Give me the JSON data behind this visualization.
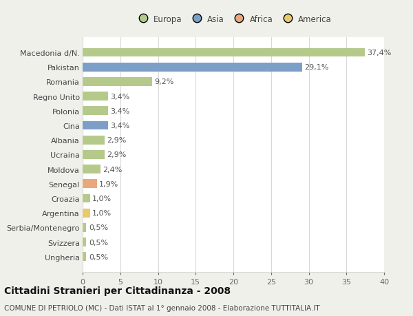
{
  "categories": [
    "Macedonia d/N.",
    "Pakistan",
    "Romania",
    "Regno Unito",
    "Polonia",
    "Cina",
    "Albania",
    "Ucraina",
    "Moldova",
    "Senegal",
    "Croazia",
    "Argentina",
    "Serbia/Montenegro",
    "Svizzera",
    "Ungheria"
  ],
  "values": [
    37.4,
    29.1,
    9.2,
    3.4,
    3.4,
    3.4,
    2.9,
    2.9,
    2.4,
    1.9,
    1.0,
    1.0,
    0.5,
    0.5,
    0.5
  ],
  "labels": [
    "37,4%",
    "29,1%",
    "9,2%",
    "3,4%",
    "3,4%",
    "3,4%",
    "2,9%",
    "2,9%",
    "2,4%",
    "1,9%",
    "1,0%",
    "1,0%",
    "0,5%",
    "0,5%",
    "0,5%"
  ],
  "continents": [
    "Europa",
    "Asia",
    "Europa",
    "Europa",
    "Europa",
    "Asia",
    "Europa",
    "Europa",
    "Europa",
    "Africa",
    "Europa",
    "America",
    "Europa",
    "Europa",
    "Europa"
  ],
  "colors": {
    "Europa": "#b5c98a",
    "Asia": "#7b9fc7",
    "Africa": "#e8a87c",
    "America": "#e8c96e"
  },
  "xlim": [
    0,
    40
  ],
  "xticks": [
    0,
    5,
    10,
    15,
    20,
    25,
    30,
    35,
    40
  ],
  "title": "Cittadini Stranieri per Cittadinanza - 2008",
  "subtitle": "COMUNE DI PETRIOLO (MC) - Dati ISTAT al 1° gennaio 2008 - Elaborazione TUTTITALIA.IT",
  "bg_color": "#f0f0eb",
  "plot_bg_color": "#ffffff",
  "grid_color": "#d8d8d8",
  "bar_height": 0.6,
  "label_fontsize": 8,
  "tick_fontsize": 8,
  "title_fontsize": 10,
  "subtitle_fontsize": 7.5,
  "legend_entries": [
    "Europa",
    "Asia",
    "Africa",
    "America"
  ]
}
